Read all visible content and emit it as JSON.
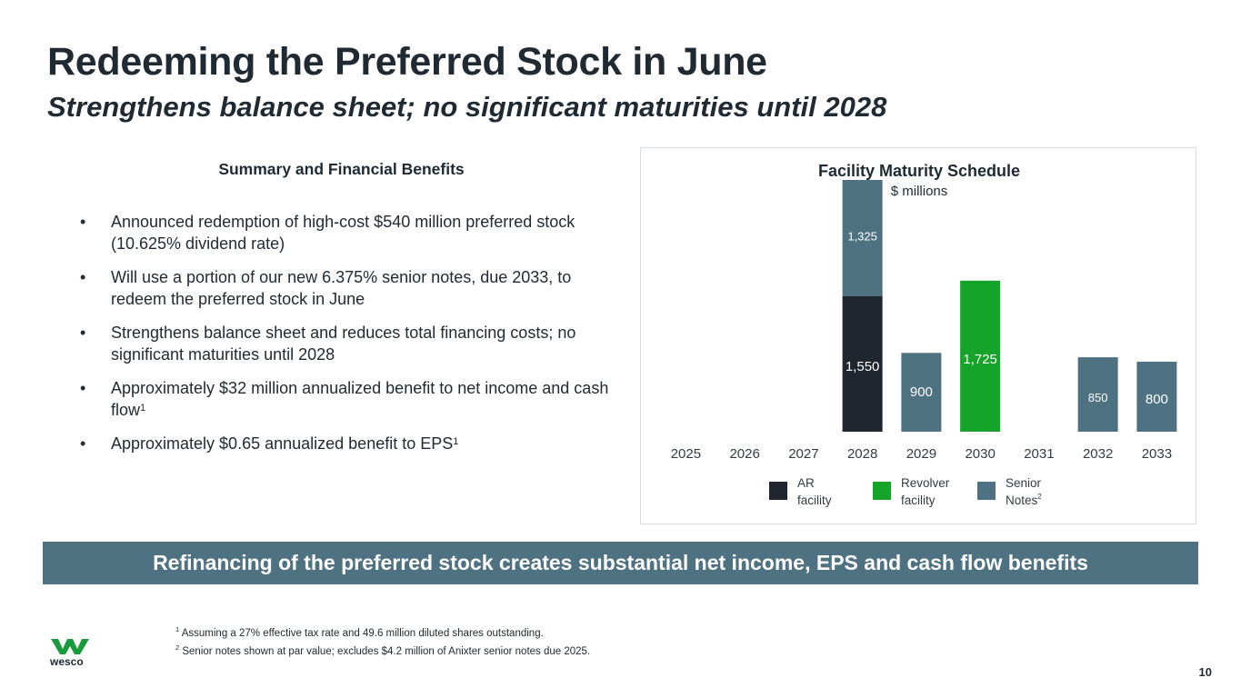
{
  "slide": {
    "title": "Redeeming the Preferred Stock in June",
    "subtitle": "Strengthens balance sheet; no significant maturities until 2028",
    "page_number": "10"
  },
  "summary": {
    "heading": "Summary and Financial Benefits",
    "bullet_marker": "•",
    "bullets": [
      {
        "text": "Announced redemption of high-cost $540 million preferred stock (10.625% dividend rate)",
        "sup": ""
      },
      {
        "text": "Will use a portion of our new 6.375% senior notes, due 2033, to redeem the preferred stock in June",
        "sup": ""
      },
      {
        "text": "Strengthens balance sheet and reduces total financing costs; no significant maturities until 2028",
        "sup": ""
      },
      {
        "text": "Approximately $32 million annualized benefit to net income and cash flow",
        "sup": "1"
      },
      {
        "text": "Approximately $0.65 annualized benefit to EPS",
        "sup": "1"
      }
    ]
  },
  "banner": {
    "text": "Refinancing of the preferred stock creates substantial net income, EPS and cash flow benefits"
  },
  "footnotes": [
    {
      "marker": "1",
      "text": " Assuming a 27% effective tax rate and 49.6 million diluted shares outstanding."
    },
    {
      "marker": "2",
      "text": " Senior notes shown at par value; excludes $4.2 million of Anixter senior notes due 2025."
    }
  ],
  "logo": {
    "text": "wesco",
    "color": "#1a9a3a"
  },
  "colors": {
    "ar": "#1f262d",
    "revolver": "#15a32a",
    "senior": "#4f7283"
  },
  "chart_data": {
    "type": "bar",
    "stacked": true,
    "title": "Facility Maturity Schedule",
    "subtitle": "$ millions",
    "categories": [
      "2025",
      "2026",
      "2027",
      "2028",
      "2029",
      "2030",
      "2031",
      "2032",
      "2033"
    ],
    "series": [
      {
        "name": "AR facility",
        "key": "ar",
        "values": [
          0,
          0,
          0,
          1550,
          0,
          0,
          0,
          0,
          0
        ],
        "labels": [
          "",
          "",
          "",
          "1,550",
          "",
          "",
          "",
          "",
          ""
        ]
      },
      {
        "name": "Revolver facility",
        "key": "revolver",
        "values": [
          0,
          0,
          0,
          0,
          0,
          1725,
          0,
          0,
          0
        ],
        "labels": [
          "",
          "",
          "",
          "",
          "",
          "1,725",
          "",
          "",
          ""
        ]
      },
      {
        "name": "Senior Notes",
        "key": "senior",
        "sup": "2",
        "values": [
          0,
          0,
          0,
          1325,
          900,
          0,
          0,
          850,
          800
        ],
        "labels": [
          "",
          "",
          "",
          "1,325",
          "900",
          "",
          "",
          "850",
          "800"
        ]
      }
    ],
    "legend": [
      {
        "key": "ar",
        "line1": "AR",
        "line2": "facility",
        "sup": ""
      },
      {
        "key": "revolver",
        "line1": "Revolver",
        "line2": "facility",
        "sup": ""
      },
      {
        "key": "senior",
        "line1": "Senior",
        "line2": "Notes",
        "sup": "2"
      }
    ],
    "ylim": [
      0,
      2875
    ],
    "legend_position": "bottom"
  }
}
